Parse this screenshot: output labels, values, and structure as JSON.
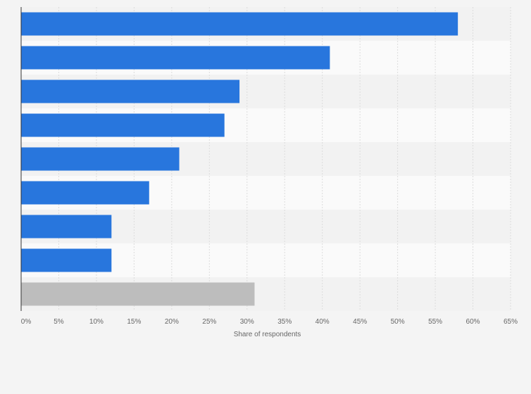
{
  "chart_data": {
    "type": "bar",
    "orientation": "horizontal",
    "title": "",
    "xlabel": "Share of respondents",
    "ylabel": "",
    "xlim": [
      0,
      65
    ],
    "x_ticks": [
      0,
      5,
      10,
      15,
      20,
      25,
      30,
      35,
      40,
      45,
      50,
      55,
      60,
      65
    ],
    "x_tick_labels": [
      "0%",
      "5%",
      "10%",
      "15%",
      "20%",
      "25%",
      "30%",
      "35%",
      "40%",
      "45%",
      "50%",
      "55%",
      "60%",
      "65%"
    ],
    "categories": [
      "",
      "",
      "",
      "",
      "",
      "",
      "",
      "",
      ""
    ],
    "values": [
      58,
      41,
      29,
      27,
      21,
      17,
      12,
      12,
      31
    ],
    "value_unit": "%",
    "grid": true,
    "colors": {
      "bar": "#2876dd",
      "bar_highlight": "#bdbdbd",
      "band_dark": "#f2f2f2",
      "band_light": "#fafafa",
      "gridline": "#dcdcdc",
      "axis": "#333333"
    }
  }
}
